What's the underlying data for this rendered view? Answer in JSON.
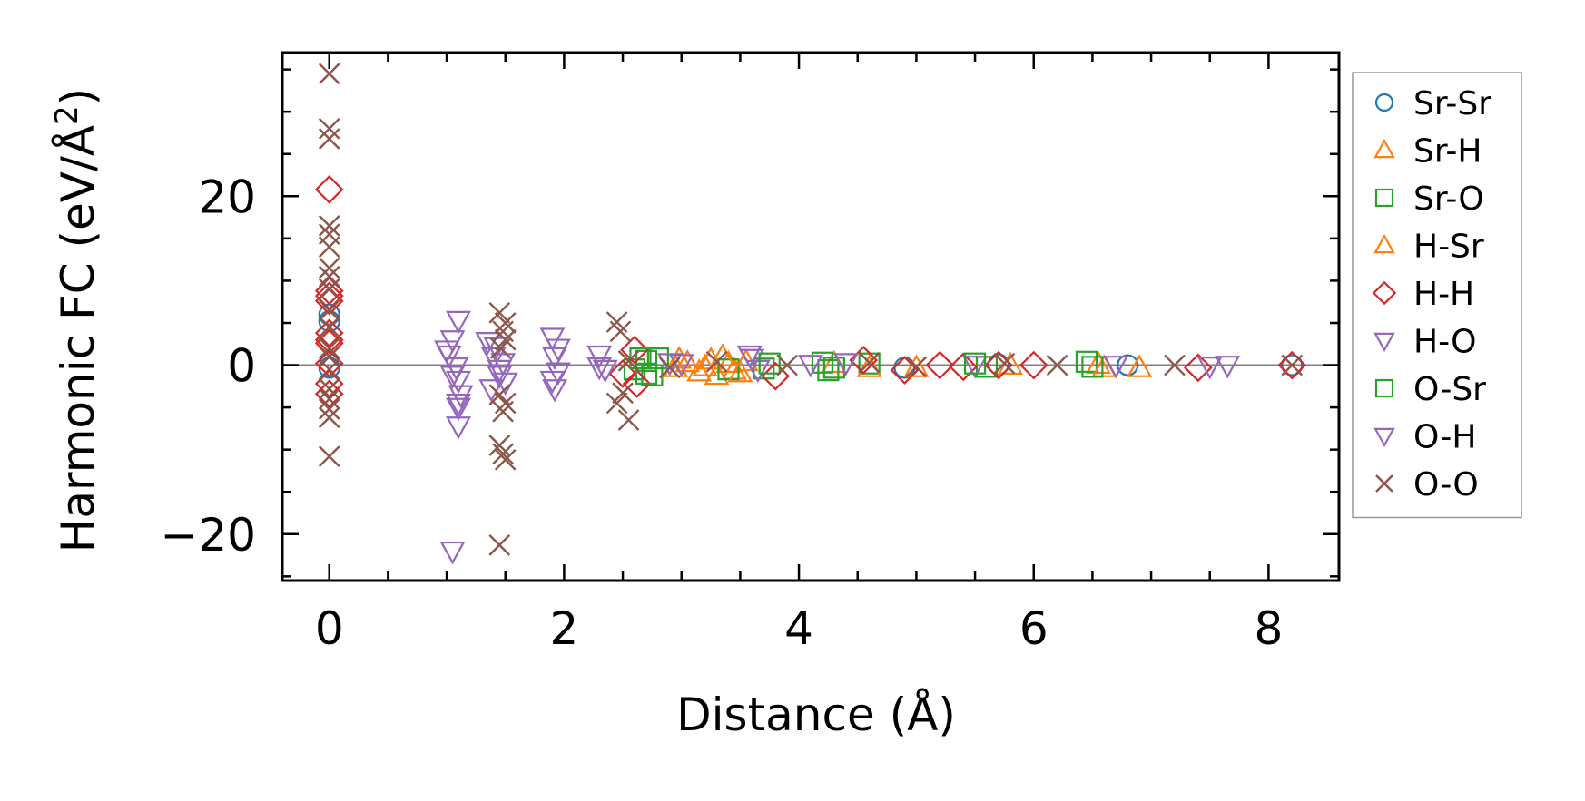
{
  "chart_data": {
    "type": "scatter",
    "xlabel": "Distance (Å)",
    "ylabel_main": "Harmonic FC (eV/Å",
    "ylabel_sup": "2",
    "ylabel_close": ")",
    "xlim": [
      -0.4,
      8.6
    ],
    "ylim": [
      -25.5,
      37.0
    ],
    "xticks": [
      0,
      2,
      4,
      6,
      8
    ],
    "xtick_labels": [
      "0",
      "2",
      "4",
      "6",
      "8"
    ],
    "yticks": [
      -20,
      0,
      20
    ],
    "ytick_labels": [
      "−20",
      "0",
      "20"
    ],
    "zero_line": true,
    "grid": false,
    "legend_position": "outside-right",
    "series": [
      {
        "name": "Sr-Sr",
        "marker": "circle",
        "color": "#1f77b4",
        "points": [
          [
            0,
            6.0
          ],
          [
            0,
            5.2
          ],
          [
            0,
            -0.3
          ],
          [
            4.9,
            -0.3
          ],
          [
            5.7,
            0.1
          ],
          [
            6.8,
            0.0
          ],
          [
            8.2,
            0.0
          ]
        ]
      },
      {
        "name": "Sr-H",
        "marker": "triangle-up",
        "color": "#ff7f0e",
        "points": [
          [
            2.95,
            -0.3
          ],
          [
            3.05,
            0.3
          ],
          [
            3.15,
            -0.8
          ],
          [
            3.25,
            0.6
          ],
          [
            3.3,
            -1.2
          ],
          [
            3.4,
            0.2
          ],
          [
            3.45,
            -0.6
          ],
          [
            3.55,
            0.4
          ],
          [
            4.3,
            0.2
          ],
          [
            5.0,
            -0.3
          ],
          [
            6.55,
            0.1
          ],
          [
            6.9,
            -0.3
          ]
        ]
      },
      {
        "name": "Sr-O",
        "marker": "square",
        "color": "#2ca02c",
        "points": [
          [
            2.6,
            -0.5
          ],
          [
            2.7,
            0.5
          ],
          [
            2.75,
            -1.2
          ],
          [
            2.8,
            0.8
          ],
          [
            3.4,
            -0.5
          ],
          [
            3.7,
            -0.4
          ],
          [
            4.2,
            0.3
          ],
          [
            4.25,
            -0.6
          ],
          [
            4.6,
            0.2
          ],
          [
            5.6,
            -0.2
          ],
          [
            6.45,
            0.4
          ]
        ]
      },
      {
        "name": "H-Sr",
        "marker": "triangle-up",
        "color": "#ff7f0e",
        "points": [
          [
            2.98,
            0.7
          ],
          [
            3.2,
            -0.2
          ],
          [
            3.35,
            1.0
          ],
          [
            3.5,
            -0.9
          ],
          [
            4.6,
            -0.3
          ],
          [
            5.8,
            0.0
          ],
          [
            6.6,
            -0.3
          ]
        ]
      },
      {
        "name": "H-H",
        "marker": "diamond",
        "color": "#d62728",
        "points": [
          [
            0,
            20.8
          ],
          [
            0,
            8.8
          ],
          [
            0,
            8.2
          ],
          [
            0,
            7.6
          ],
          [
            0,
            3.8
          ],
          [
            0,
            3.0
          ],
          [
            0,
            2.6
          ],
          [
            0,
            0.2
          ],
          [
            0,
            -2.2
          ],
          [
            0,
            -3.4
          ],
          [
            2.5,
            -1.0
          ],
          [
            2.6,
            1.8
          ],
          [
            2.62,
            -2.2
          ],
          [
            3.8,
            -1.3
          ],
          [
            4.55,
            0.6
          ],
          [
            4.9,
            -0.6
          ],
          [
            5.2,
            0.0
          ],
          [
            5.4,
            -0.2
          ],
          [
            5.7,
            0.0
          ],
          [
            6.0,
            0.0
          ],
          [
            7.4,
            -0.3
          ],
          [
            8.2,
            0.0
          ]
        ]
      },
      {
        "name": "H-O",
        "marker": "triangle-down",
        "color": "#9467bd",
        "points": [
          [
            1.05,
            -22.0
          ],
          [
            1.1,
            5.3
          ],
          [
            1.05,
            3.0
          ],
          [
            1.02,
            1.2
          ],
          [
            1.08,
            -0.2
          ],
          [
            1.1,
            -1.8
          ],
          [
            1.12,
            -3.5
          ],
          [
            1.1,
            -5.0
          ],
          [
            1.1,
            -7.2
          ],
          [
            1.35,
            2.8
          ],
          [
            1.4,
            1.0
          ],
          [
            1.45,
            -0.5
          ],
          [
            1.5,
            -2.0
          ],
          [
            1.38,
            -2.8
          ],
          [
            1.9,
            3.3
          ],
          [
            1.92,
            1.0
          ],
          [
            1.95,
            -0.8
          ],
          [
            1.92,
            -2.8
          ],
          [
            2.3,
            1.2
          ],
          [
            2.35,
            -0.5
          ],
          [
            3.0,
            0.2
          ],
          [
            3.6,
            0.8
          ],
          [
            3.65,
            -0.5
          ],
          [
            4.1,
            0.1
          ],
          [
            5.5,
            0.0
          ],
          [
            7.5,
            -0.1
          ],
          [
            7.65,
            0.0
          ]
        ]
      },
      {
        "name": "O-Sr",
        "marker": "square",
        "color": "#2ca02c",
        "points": [
          [
            2.65,
            0.8
          ],
          [
            2.7,
            -1.0
          ],
          [
            3.75,
            0.2
          ],
          [
            4.3,
            -0.3
          ],
          [
            5.5,
            0.2
          ],
          [
            6.5,
            -0.2
          ]
        ]
      },
      {
        "name": "O-H",
        "marker": "triangle-down",
        "color": "#9467bd",
        "points": [
          [
            1.0,
            1.8
          ],
          [
            1.05,
            -1.2
          ],
          [
            1.1,
            -4.5
          ],
          [
            1.42,
            2.2
          ],
          [
            1.48,
            0.3
          ],
          [
            1.45,
            -1.2
          ],
          [
            1.95,
            2.0
          ],
          [
            1.9,
            -1.8
          ],
          [
            2.3,
            -0.2
          ],
          [
            2.9,
            0.3
          ],
          [
            3.58,
            1.2
          ],
          [
            4.4,
            0.3
          ],
          [
            6.7,
            0.0
          ]
        ]
      },
      {
        "name": "O-O",
        "marker": "x",
        "color": "#8c564b",
        "points": [
          [
            0,
            34.5
          ],
          [
            0,
            28.0
          ],
          [
            0,
            26.8
          ],
          [
            0,
            16.5
          ],
          [
            0,
            15.5
          ],
          [
            0,
            14.0
          ],
          [
            0,
            11.5
          ],
          [
            0,
            10.5
          ],
          [
            0,
            9.0
          ],
          [
            0,
            6.5
          ],
          [
            0,
            4.5
          ],
          [
            0,
            2.0
          ],
          [
            0,
            1.0
          ],
          [
            0,
            -0.5
          ],
          [
            0,
            -2.8
          ],
          [
            0,
            -4.0
          ],
          [
            0,
            -5.2
          ],
          [
            0,
            -6.2
          ],
          [
            0,
            -10.8
          ],
          [
            1.45,
            6.2
          ],
          [
            1.5,
            5.0
          ],
          [
            1.48,
            4.0
          ],
          [
            1.5,
            3.0
          ],
          [
            1.46,
            2.0
          ],
          [
            1.45,
            -3.5
          ],
          [
            1.5,
            -4.5
          ],
          [
            1.48,
            -5.5
          ],
          [
            1.45,
            -9.5
          ],
          [
            1.48,
            -10.5
          ],
          [
            1.5,
            -11.2
          ],
          [
            1.45,
            -21.3
          ],
          [
            2.45,
            5.1
          ],
          [
            2.48,
            4.0
          ],
          [
            2.5,
            -3.3
          ],
          [
            2.45,
            -4.5
          ],
          [
            2.55,
            -6.5
          ],
          [
            2.55,
            0.5
          ],
          [
            2.9,
            -0.3
          ],
          [
            3.3,
            0.4
          ],
          [
            3.9,
            0.0
          ],
          [
            4.6,
            0.3
          ],
          [
            5.0,
            -0.2
          ],
          [
            5.75,
            0.2
          ],
          [
            6.2,
            0.0
          ],
          [
            7.2,
            0.0
          ],
          [
            8.2,
            0.0
          ]
        ]
      }
    ]
  }
}
